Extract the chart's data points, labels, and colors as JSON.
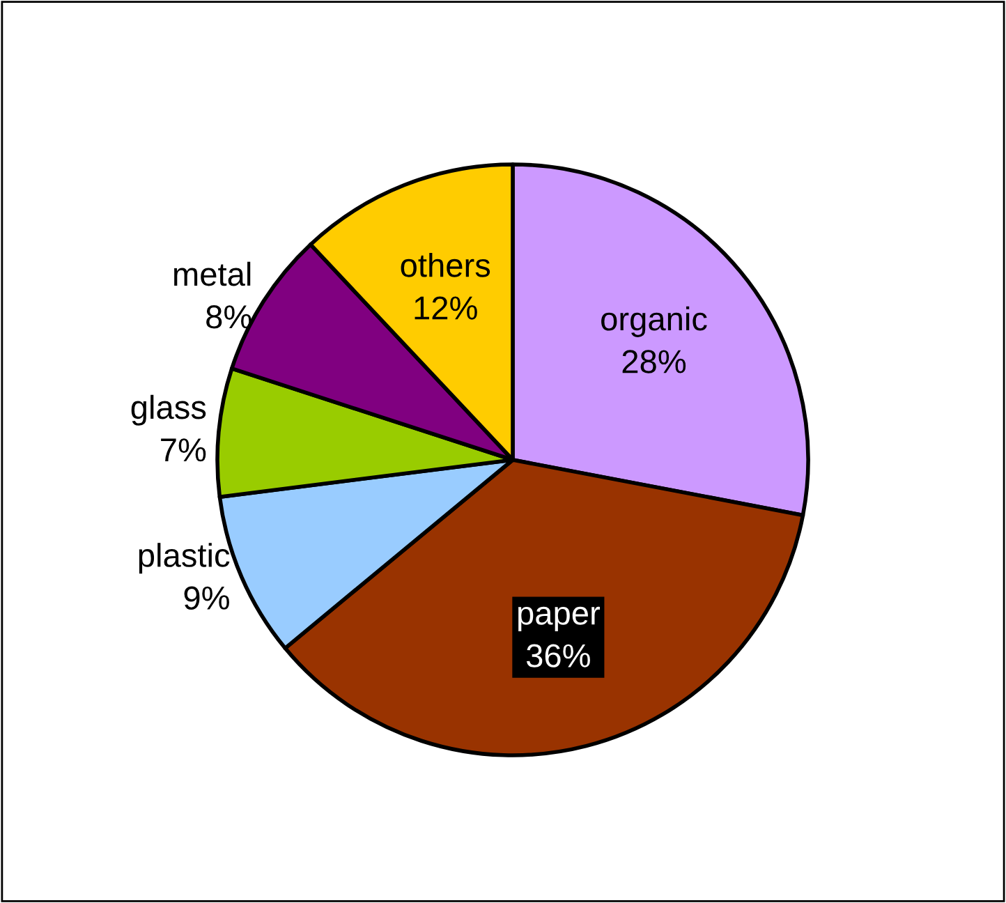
{
  "chart_data": {
    "type": "pie",
    "categories": [
      "organic",
      "paper",
      "plastic",
      "glass",
      "metal",
      "others"
    ],
    "values": [
      28,
      36,
      9,
      7,
      8,
      12
    ],
    "value_labels": [
      "28%",
      "36%",
      "9%",
      "7%",
      "8%",
      "12%"
    ],
    "colors": [
      "#cc99ff",
      "#993300",
      "#99ccff",
      "#99cc00",
      "#800080",
      "#ffcc00"
    ],
    "legend": false
  }
}
